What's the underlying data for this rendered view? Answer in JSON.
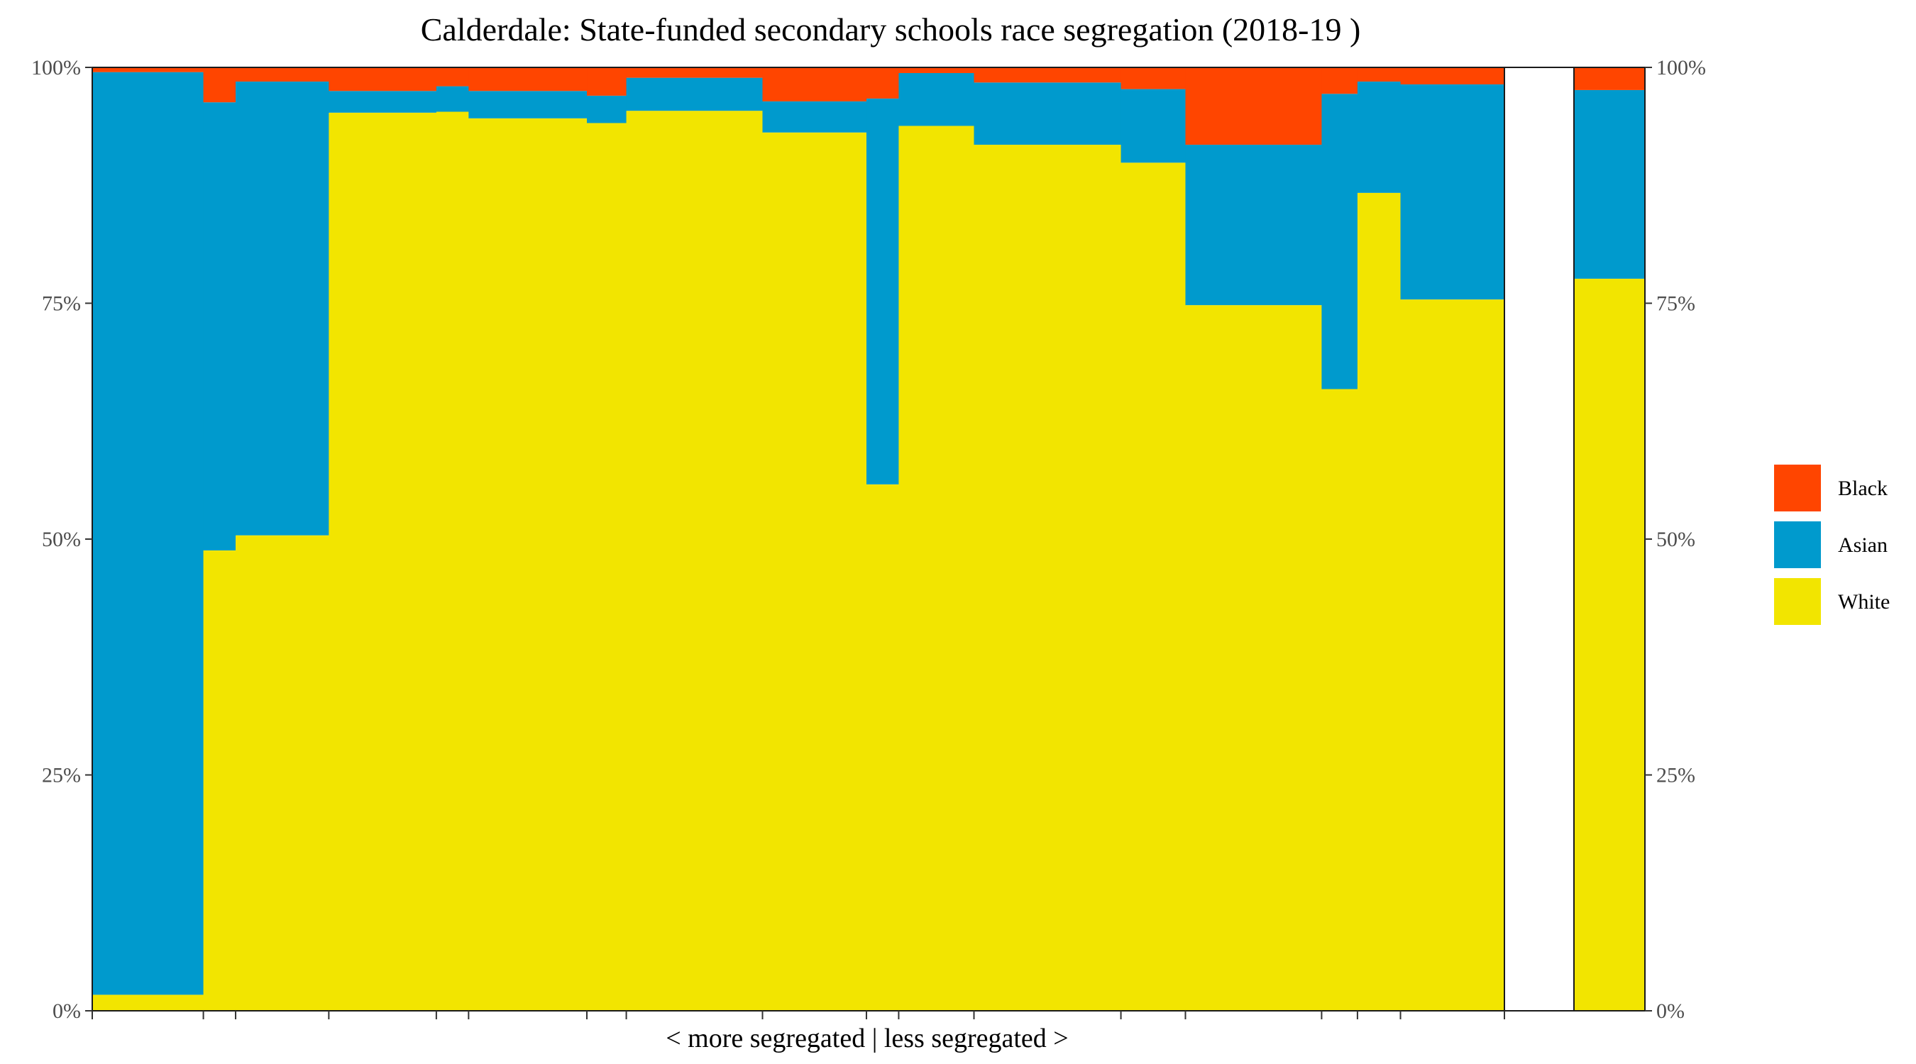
{
  "chart_data": {
    "type": "bar",
    "title": "Calderdale: State-funded secondary schools race segregation (2018-19 )",
    "xlabel": "< more segregated | less segregated >",
    "ylabel": "",
    "ylim": [
      0,
      100
    ],
    "y_ticks": [
      "0%",
      "25%",
      "50%",
      "75%",
      "100%"
    ],
    "legend": {
      "position": "right",
      "entries": [
        "Black",
        "Asian",
        "White"
      ]
    },
    "colors": {
      "Black": "#FF4500",
      "Asian": "#009ACD",
      "White": "#F2E500"
    },
    "series_order": [
      "White",
      "Asian",
      "Black"
    ],
    "schools_relative_widths": [
      1.55,
      0.45,
      1.3,
      1.5,
      0.45,
      1.65,
      0.55,
      1.9,
      1.45,
      0.45,
      1.05,
      2.05,
      0.9,
      1.9,
      0.5,
      0.6,
      1.45
    ],
    "schools": [
      {
        "White": 1.7,
        "Asian": 97.8,
        "Black": 0.5
      },
      {
        "White": 48.8,
        "Asian": 47.5,
        "Black": 3.7
      },
      {
        "White": 50.4,
        "Asian": 48.1,
        "Black": 1.5
      },
      {
        "White": 95.2,
        "Asian": 2.3,
        "Black": 2.5
      },
      {
        "White": 95.3,
        "Asian": 2.7,
        "Black": 2.0
      },
      {
        "White": 94.6,
        "Asian": 2.9,
        "Black": 2.5
      },
      {
        "White": 94.1,
        "Asian": 2.9,
        "Black": 3.0
      },
      {
        "White": 95.4,
        "Asian": 3.5,
        "Black": 1.1
      },
      {
        "White": 93.1,
        "Asian": 3.3,
        "Black": 3.6
      },
      {
        "White": 55.8,
        "Asian": 40.9,
        "Black": 3.3
      },
      {
        "White": 93.8,
        "Asian": 5.6,
        "Black": 0.6
      },
      {
        "White": 91.8,
        "Asian": 6.6,
        "Black": 1.6
      },
      {
        "White": 89.9,
        "Asian": 7.8,
        "Black": 2.3
      },
      {
        "White": 74.8,
        "Asian": 17.0,
        "Black": 8.2
      },
      {
        "White": 65.9,
        "Asian": 31.3,
        "Black": 2.8
      },
      {
        "White": 86.7,
        "Asian": 11.8,
        "Black": 1.5
      },
      {
        "White": 75.4,
        "Asian": 22.8,
        "Black": 1.8
      }
    ],
    "overall": {
      "White": 77.6,
      "Asian": 20.0,
      "Black": 2.4
    },
    "grid": false
  }
}
